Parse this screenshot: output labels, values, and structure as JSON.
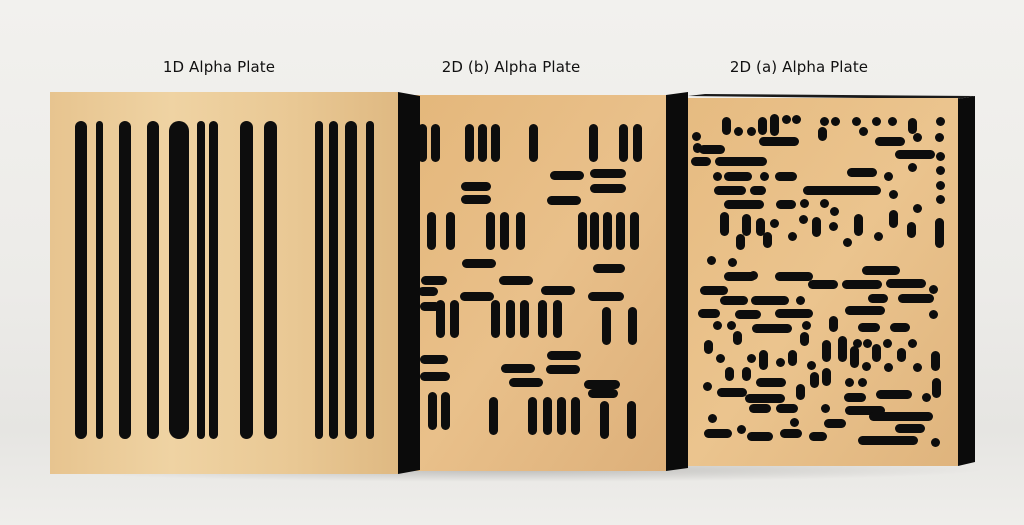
{
  "captions": {
    "plate_1d": "1D Alpha Plate",
    "plate_2d_b": "2D (b) Alpha Plate",
    "plate_2d_a": "2D (a) Alpha Plate"
  },
  "colors": {
    "wood_light": "#eccd9a",
    "wood_mid": "#dcb27a",
    "slot": "#0d0d0d",
    "side": "#0b0b0b",
    "background": "#efeeeb"
  }
}
